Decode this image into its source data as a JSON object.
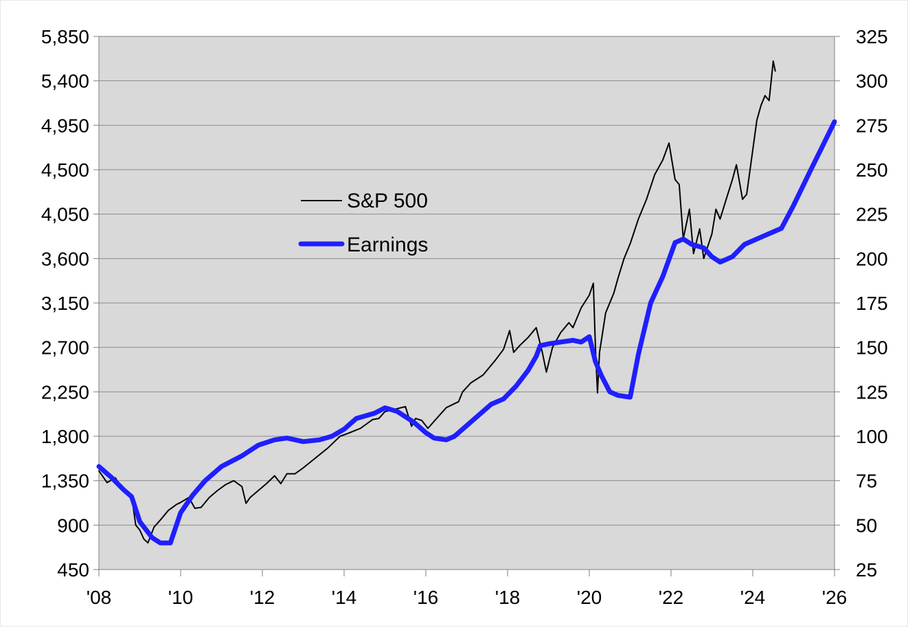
{
  "chart_data": {
    "type": "line",
    "title": "",
    "xlabel": "",
    "ylabel": "",
    "x_ticks": [
      "'08",
      "'10",
      "'12",
      "'14",
      "'16",
      "'18",
      "'20",
      "'22",
      "'24",
      "'26"
    ],
    "x_range": [
      2008,
      2026
    ],
    "y_left": {
      "range": [
        450,
        5850
      ],
      "ticks": [
        "5,850",
        "5,400",
        "4,950",
        "4,500",
        "4,050",
        "3,600",
        "3,150",
        "2,700",
        "2,250",
        "1,800",
        "1,350",
        "900",
        "450"
      ],
      "tick_values": [
        5850,
        5400,
        4950,
        4500,
        4050,
        3600,
        3150,
        2700,
        2250,
        1800,
        1350,
        900,
        450
      ]
    },
    "y_right": {
      "range": [
        25,
        325
      ],
      "ticks": [
        "325",
        "300",
        "275",
        "250",
        "225",
        "200",
        "175",
        "150",
        "125",
        "100",
        "75",
        "50",
        "25"
      ],
      "tick_values": [
        325,
        300,
        275,
        250,
        225,
        200,
        175,
        150,
        125,
        100,
        75,
        50,
        25
      ]
    },
    "grid": true,
    "plot_background": "#d9d9d9",
    "legend_position": "upper-left-center",
    "series": [
      {
        "name": "S&P 500",
        "axis": "left",
        "color": "#000000",
        "x": [
          2008.0,
          2008.2,
          2008.4,
          2008.6,
          2008.8,
          2008.9,
          2009.0,
          2009.1,
          2009.2,
          2009.35,
          2009.5,
          2009.7,
          2009.9,
          2010.0,
          2010.2,
          2010.35,
          2010.5,
          2010.7,
          2010.9,
          2011.1,
          2011.3,
          2011.5,
          2011.6,
          2011.7,
          2011.9,
          2012.1,
          2012.3,
          2012.45,
          2012.6,
          2012.8,
          2013.0,
          2013.3,
          2013.6,
          2013.9,
          2014.1,
          2014.4,
          2014.7,
          2014.85,
          2015.0,
          2015.3,
          2015.5,
          2015.65,
          2015.75,
          2015.9,
          2016.05,
          2016.2,
          2016.5,
          2016.8,
          2016.9,
          2017.1,
          2017.4,
          2017.7,
          2017.9,
          2018.05,
          2018.15,
          2018.3,
          2018.5,
          2018.7,
          2018.85,
          2018.95,
          2019.1,
          2019.3,
          2019.5,
          2019.6,
          2019.8,
          2020.0,
          2020.1,
          2020.15,
          2020.2,
          2020.25,
          2020.4,
          2020.6,
          2020.7,
          2020.85,
          2021.0,
          2021.2,
          2021.4,
          2021.6,
          2021.8,
          2021.95,
          2022.1,
          2022.2,
          2022.3,
          2022.45,
          2022.55,
          2022.7,
          2022.8,
          2023.0,
          2023.1,
          2023.2,
          2023.35,
          2023.5,
          2023.6,
          2023.75,
          2023.85,
          2024.0,
          2024.1,
          2024.2,
          2024.3,
          2024.4,
          2024.5,
          2024.55
        ],
        "values": [
          1450,
          1330,
          1380,
          1260,
          1200,
          900,
          850,
          760,
          720,
          880,
          950,
          1050,
          1110,
          1130,
          1180,
          1070,
          1080,
          1180,
          1250,
          1310,
          1350,
          1290,
          1120,
          1180,
          1250,
          1320,
          1400,
          1320,
          1420,
          1420,
          1480,
          1580,
          1680,
          1800,
          1830,
          1880,
          1970,
          1980,
          2050,
          2080,
          2100,
          1900,
          1980,
          1960,
          1880,
          1950,
          2090,
          2150,
          2250,
          2340,
          2420,
          2570,
          2680,
          2870,
          2650,
          2720,
          2800,
          2900,
          2650,
          2450,
          2700,
          2850,
          2950,
          2900,
          3100,
          3230,
          3350,
          2700,
          2240,
          2650,
          3050,
          3250,
          3400,
          3600,
          3750,
          4000,
          4200,
          4450,
          4600,
          4770,
          4400,
          4350,
          3800,
          4100,
          3650,
          3900,
          3600,
          3850,
          4100,
          4000,
          4200,
          4400,
          4550,
          4200,
          4250,
          4700,
          5000,
          5150,
          5250,
          5200,
          5600,
          5500
        ]
      },
      {
        "name": "Earnings",
        "axis": "right",
        "color": "#1f1fff",
        "x": [
          2008.0,
          2008.3,
          2008.6,
          2008.8,
          2009.0,
          2009.3,
          2009.5,
          2009.75,
          2010.0,
          2010.3,
          2010.6,
          2011.0,
          2011.5,
          2011.9,
          2012.3,
          2012.6,
          2013.0,
          2013.4,
          2013.7,
          2014.0,
          2014.3,
          2014.75,
          2015.0,
          2015.3,
          2015.7,
          2016.0,
          2016.2,
          2016.5,
          2016.7,
          2017.0,
          2017.3,
          2017.6,
          2017.9,
          2018.2,
          2018.5,
          2018.7,
          2018.8,
          2019.0,
          2019.3,
          2019.6,
          2019.8,
          2020.0,
          2020.15,
          2020.3,
          2020.5,
          2020.7,
          2021.0,
          2021.2,
          2021.5,
          2021.8,
          2022.1,
          2022.3,
          2022.5,
          2022.8,
          2023.0,
          2023.2,
          2023.5,
          2023.8,
          2024.0,
          2024.3,
          2024.5,
          2024.7,
          2025.0,
          2025.4,
          2025.7,
          2026.0
        ],
        "values": [
          83,
          77,
          70,
          66,
          52,
          43,
          40,
          40,
          57,
          67,
          75,
          83,
          89,
          95,
          98,
          99,
          97,
          98,
          100,
          104,
          110,
          113,
          116,
          114,
          108,
          102,
          99,
          98,
          100,
          106,
          112,
          118,
          121,
          128,
          137,
          145,
          151,
          152,
          153,
          154,
          153,
          156,
          142,
          134,
          125,
          123,
          122,
          146,
          175,
          190,
          209,
          211,
          208,
          206,
          201,
          198,
          201,
          208,
          210,
          213,
          215,
          217,
          230,
          249,
          263,
          277
        ]
      }
    ]
  }
}
